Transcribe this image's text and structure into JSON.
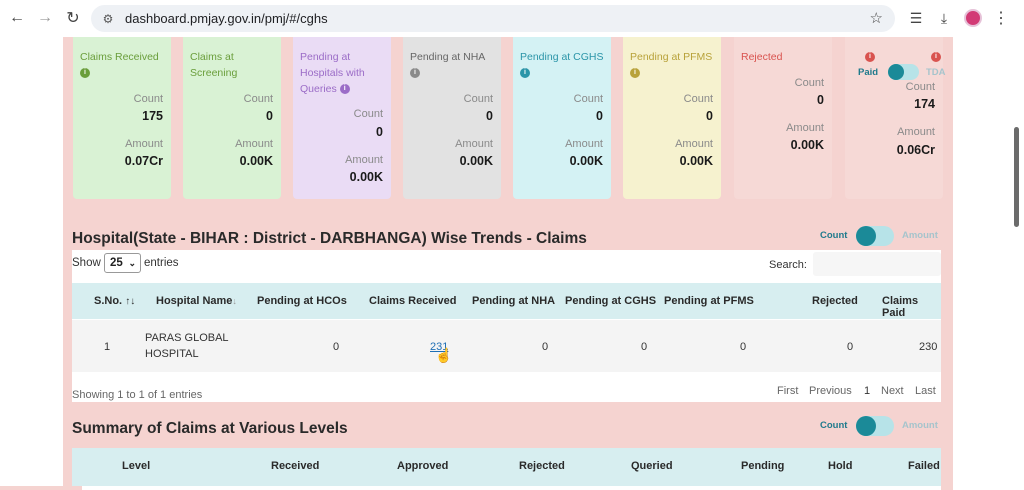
{
  "browser": {
    "url": "dashboard.pmjay.gov.in/pmj/#/cghs"
  },
  "cards": [
    {
      "title": "Claims Received",
      "title_color": "#6a9e3b",
      "bg": "#d9f2d4",
      "info_color": "#6a9e3b",
      "count_label": "Count",
      "count": "175",
      "amount_label": "Amount",
      "amount": "0.07Cr"
    },
    {
      "title": "Claims at Screening",
      "title_color": "#6a9e3b",
      "bg": "#d9f2d4",
      "info_color": "",
      "count_label": "Count",
      "count": "0",
      "amount_label": "Amount",
      "amount": "0.00K"
    },
    {
      "title": "Pending at Hospitals with Queries",
      "title_color": "#9b6cc7",
      "bg": "#eadcf5",
      "info_color": "#9b6cc7",
      "count_label": "Count",
      "count": "0",
      "amount_label": "Amount",
      "amount": "0.00K"
    },
    {
      "title": "Pending at NHA",
      "title_color": "#666666",
      "bg": "#e2e2e2",
      "info_color": "#8a8a8a",
      "count_label": "Count",
      "count": "0",
      "amount_label": "Amount",
      "amount": "0.00K"
    },
    {
      "title": "Pending at CGHS",
      "title_color": "#2b95a8",
      "bg": "#d4f2f4",
      "info_color": "#2b95a8",
      "count_label": "Count",
      "count": "0",
      "amount_label": "Amount",
      "amount": "0.00K"
    },
    {
      "title": "Pending at PFMS",
      "title_color": "#b8a23a",
      "bg": "#f6f2cf",
      "info_color": "#b8a23a",
      "count_label": "Count",
      "count": "0",
      "amount_label": "Amount",
      "amount": "0.00K"
    },
    {
      "title": "Rejected",
      "title_color": "#d9534f",
      "bg": "#f6d9d6",
      "info_color": "",
      "count_label": "Count",
      "count": "0",
      "amount_label": "Amount",
      "amount": "0.00K"
    }
  ],
  "tda_card": {
    "bg": "#f6d9d6",
    "paid_label": "Paid",
    "tda_label": "TDA",
    "count_label": "Count",
    "count": "174",
    "amount_label": "Amount",
    "amount": "0.06Cr"
  },
  "section1": {
    "title": "Hospital(State - BIHAR : District - DARBHANGA) Wise Trends - Claims",
    "toggle_count": "Count",
    "toggle_amount": "Amount"
  },
  "table": {
    "show_label": "Show",
    "entries_value": "25",
    "entries_label": "entries",
    "search_label": "Search:",
    "columns": [
      "S.No.",
      "Hospital Name",
      "Pending at HCOs",
      "Claims Received",
      "Pending at NHA",
      "Pending at CGHS",
      "Pending at PFMS",
      "Rejected",
      "Claims Paid"
    ],
    "row": {
      "sno": "1",
      "hospital_line1": "PARAS GLOBAL",
      "hospital_line2": "HOSPITAL",
      "pending_hcos": "0",
      "claims_received": "231",
      "pending_nha": "0",
      "pending_cghs": "0",
      "pending_pfms": "0",
      "rejected": "0",
      "claims_paid": "230"
    },
    "info_text": "Showing 1 to 1 of 1 entries",
    "pager": {
      "first": "First",
      "previous": "Previous",
      "current": "1",
      "next": "Next",
      "last": "Last"
    }
  },
  "section2": {
    "title": "Summary of Claims at Various Levels",
    "toggle_count": "Count",
    "toggle_amount": "Amount",
    "columns": [
      "Level",
      "Received",
      "Approved",
      "Rejected",
      "Queried",
      "Pending",
      "Hold",
      "Failed"
    ]
  }
}
